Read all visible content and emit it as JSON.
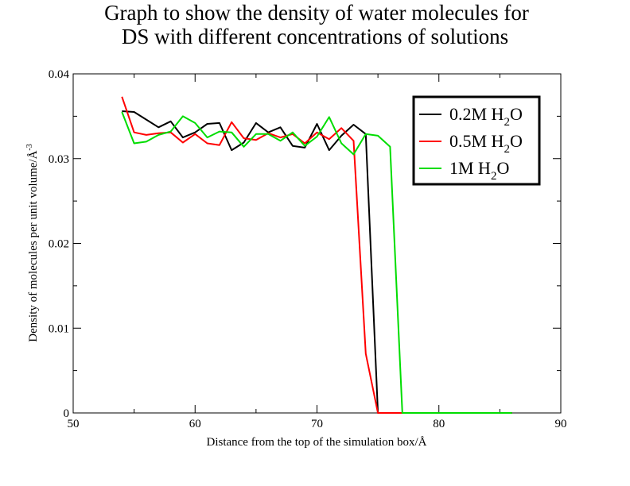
{
  "chart_data": {
    "type": "line",
    "title_lines": [
      "Graph to show the density of water molecules for",
      "DS with different concentrations of solutions"
    ],
    "xlabel": "Distance from the top of the simulation box/Å",
    "ylabel": "Density of molecules per unit volume/Å",
    "ylabel_exponent": "-3",
    "xlim": [
      50,
      90
    ],
    "ylim": [
      0,
      0.04
    ],
    "x_ticks": [
      "50",
      "60",
      "70",
      "80",
      "90"
    ],
    "y_ticks": [
      "0",
      "0.01",
      "0.02",
      "0.03",
      "0.04"
    ],
    "grid": false,
    "legend_position": "top-right",
    "series": [
      {
        "name": "0.2M H2O",
        "legend_main": "0.2M H",
        "legend_sub": "2",
        "legend_tail": "O",
        "color": "#000000",
        "x": [
          54,
          55,
          56,
          57,
          58,
          59,
          60,
          61,
          62,
          63,
          64,
          65,
          66,
          67,
          68,
          69,
          70,
          71,
          72,
          73,
          74,
          75,
          76,
          77,
          78,
          79,
          80,
          81,
          82,
          83,
          84,
          85,
          86
        ],
        "y": [
          0.0356,
          0.0355,
          0.0346,
          0.0337,
          0.0344,
          0.0325,
          0.0331,
          0.0341,
          0.0342,
          0.031,
          0.0319,
          0.0342,
          0.0331,
          0.0337,
          0.0315,
          0.0313,
          0.0341,
          0.031,
          0.0327,
          0.034,
          0.0329,
          0.0,
          0.0,
          0.0,
          0.0,
          0.0,
          0.0,
          0.0,
          0.0,
          0.0,
          0.0,
          0.0,
          0.0
        ]
      },
      {
        "name": "0.5M H2O",
        "legend_main": "0.5M H",
        "legend_sub": "2",
        "legend_tail": "O",
        "color": "#ff0000",
        "x": [
          54,
          55,
          56,
          57,
          58,
          59,
          60,
          61,
          62,
          63,
          64,
          65,
          66,
          67,
          68,
          69,
          70,
          71,
          72,
          73,
          74,
          75,
          76,
          77,
          78,
          79,
          80,
          81,
          82,
          83,
          84,
          85,
          86
        ],
        "y": [
          0.0373,
          0.0331,
          0.0328,
          0.033,
          0.0331,
          0.0319,
          0.0329,
          0.0318,
          0.0316,
          0.0343,
          0.0324,
          0.0322,
          0.033,
          0.0325,
          0.0329,
          0.0318,
          0.0331,
          0.0323,
          0.0336,
          0.0321,
          0.007,
          0.0,
          0.0,
          0.0,
          0.0,
          0.0,
          0.0,
          0.0,
          0.0,
          0.0,
          0.0,
          0.0,
          0.0
        ]
      },
      {
        "name": "1M H2O",
        "legend_main": "1M H",
        "legend_sub": "2",
        "legend_tail": "O",
        "color": "#00dd00",
        "x": [
          54,
          55,
          56,
          57,
          58,
          59,
          60,
          61,
          62,
          63,
          64,
          65,
          66,
          67,
          68,
          69,
          70,
          71,
          72,
          73,
          74,
          75,
          76,
          77,
          78,
          79,
          80,
          81,
          82,
          83,
          84,
          85,
          86
        ],
        "y": [
          0.0355,
          0.0318,
          0.032,
          0.0328,
          0.0332,
          0.035,
          0.0342,
          0.0325,
          0.0332,
          0.0331,
          0.0314,
          0.0329,
          0.0329,
          0.0321,
          0.0331,
          0.0315,
          0.0326,
          0.0349,
          0.0318,
          0.0305,
          0.0329,
          0.0327,
          0.0314,
          0.0,
          0.0,
          0.0,
          0.0,
          0.0,
          0.0,
          0.0,
          0.0,
          0.0,
          0.0
        ]
      }
    ]
  }
}
